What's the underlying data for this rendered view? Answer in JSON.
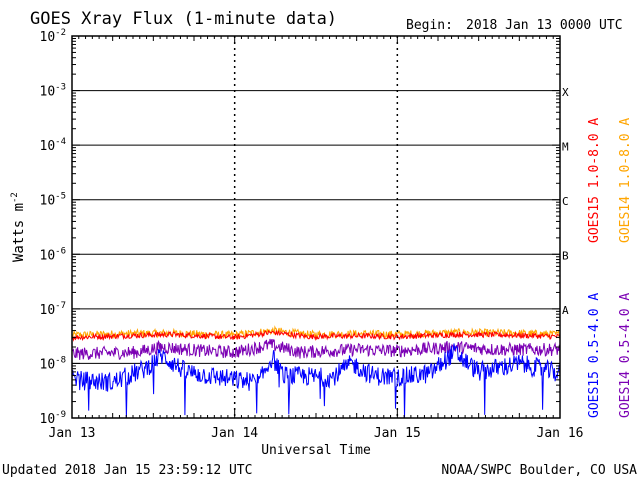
{
  "header": {
    "title": "GOES Xray Flux (1-minute data)",
    "begin_label": "Begin:",
    "begin_value": "2018 Jan 13 0000 UTC"
  },
  "footer": {
    "updated": "Updated 2018 Jan 15 23:59:12 UTC",
    "credit": "NOAA/SWPC Boulder, CO USA"
  },
  "chart_data": {
    "type": "line",
    "title": "GOES Xray Flux (1-minute data)",
    "xlabel": "Universal Time",
    "ylabel": "Watts m",
    "ylabel_sup": "-2",
    "yscale": "log",
    "ylim": [
      1e-09,
      0.01
    ],
    "xlim_days": [
      0,
      3
    ],
    "grid": true,
    "x_ticks": [
      {
        "day": 0,
        "label": "Jan 13"
      },
      {
        "day": 1,
        "label": "Jan 14"
      },
      {
        "day": 2,
        "label": "Jan 15"
      },
      {
        "day": 3,
        "label": "Jan 16"
      }
    ],
    "y_ticks": [
      {
        "exp": -9,
        "base": "10",
        "sup": "-9"
      },
      {
        "exp": -8,
        "base": "10",
        "sup": "-8"
      },
      {
        "exp": -7,
        "base": "10",
        "sup": "-7"
      },
      {
        "exp": -6,
        "base": "10",
        "sup": "-6"
      },
      {
        "exp": -5,
        "base": "10",
        "sup": "-5"
      },
      {
        "exp": -4,
        "base": "10",
        "sup": "-4"
      },
      {
        "exp": -3,
        "base": "10",
        "sup": "-3"
      },
      {
        "exp": -2,
        "base": "10",
        "sup": "-2"
      }
    ],
    "flare_classes": [
      {
        "label": "A",
        "exp": -8
      },
      {
        "label": "B",
        "exp": -7
      },
      {
        "label": "C",
        "exp": -6
      },
      {
        "label": "M",
        "exp": -5
      },
      {
        "label": "X",
        "exp": -4
      }
    ],
    "legend_right": [
      {
        "name": "GOES15 1.0-8.0 A",
        "color": "#ff0000"
      },
      {
        "name": "GOES14 1.0-8.0 A",
        "color": "#ffa500"
      }
    ],
    "legend_left": [
      {
        "name": "GOES15 0.5-4.0 A",
        "color": "#0000ff"
      },
      {
        "name": "GOES14 0.5-4.0 A",
        "color": "#7b00b4"
      }
    ],
    "series": [
      {
        "name": "GOES14 1.0-8.0 A",
        "color": "#ffa500",
        "jitter": 0.07,
        "points": [
          [
            0,
            3.3e-08
          ],
          [
            0.3,
            3.5e-08
          ],
          [
            0.6,
            3.6e-08
          ],
          [
            1.0,
            3.3e-08
          ],
          [
            1.23,
            4e-08
          ],
          [
            1.45,
            3.4e-08
          ],
          [
            1.8,
            3.5e-08
          ],
          [
            2.0,
            3.4e-08
          ],
          [
            2.4,
            3.7e-08
          ],
          [
            2.7,
            3.6e-08
          ],
          [
            3.0,
            3.4e-08
          ]
        ]
      },
      {
        "name": "GOES15 1.0-8.0 A",
        "color": "#ff0000",
        "jitter": 0.05,
        "points": [
          [
            0,
            3e-08
          ],
          [
            0.3,
            3.2e-08
          ],
          [
            0.6,
            3.4e-08
          ],
          [
            1.0,
            3e-08
          ],
          [
            1.23,
            3.7e-08
          ],
          [
            1.45,
            3.1e-08
          ],
          [
            1.8,
            3.2e-08
          ],
          [
            2.0,
            3.1e-08
          ],
          [
            2.4,
            3.4e-08
          ],
          [
            2.7,
            3.3e-08
          ],
          [
            3.0,
            3.1e-08
          ]
        ]
      },
      {
        "name": "GOES14 0.5-4.0 A",
        "color": "#7b00b4",
        "jitter": 0.12,
        "points": [
          [
            0,
            1.5e-08
          ],
          [
            0.4,
            1.6e-08
          ],
          [
            0.55,
            2e-08
          ],
          [
            0.8,
            1.7e-08
          ],
          [
            1.0,
            1.6e-08
          ],
          [
            1.22,
            2.2e-08
          ],
          [
            1.4,
            1.6e-08
          ],
          [
            1.75,
            1.8e-08
          ],
          [
            2.0,
            1.7e-08
          ],
          [
            2.35,
            2e-08
          ],
          [
            2.6,
            1.8e-08
          ],
          [
            3.0,
            1.8e-08
          ]
        ]
      },
      {
        "name": "GOES15 0.5-4.0 A",
        "color": "#0000ff",
        "jitter": 0.18,
        "points": [
          [
            0,
            5e-09
          ],
          [
            0.25,
            4.5e-09
          ],
          [
            0.45,
            8e-09
          ],
          [
            0.55,
            1.4e-08
          ],
          [
            0.7,
            7e-09
          ],
          [
            1.0,
            5e-09
          ],
          [
            1.15,
            4.5e-09
          ],
          [
            1.23,
            1.3e-08
          ],
          [
            1.3,
            6e-09
          ],
          [
            1.6,
            5.5e-09
          ],
          [
            1.72,
            1e-08
          ],
          [
            1.85,
            6e-09
          ],
          [
            2.0,
            5.5e-09
          ],
          [
            2.2,
            6.5e-09
          ],
          [
            2.35,
            1.6e-08
          ],
          [
            2.5,
            7e-09
          ],
          [
            2.75,
            1e-08
          ],
          [
            3.0,
            6.5e-09
          ]
        ]
      }
    ]
  }
}
